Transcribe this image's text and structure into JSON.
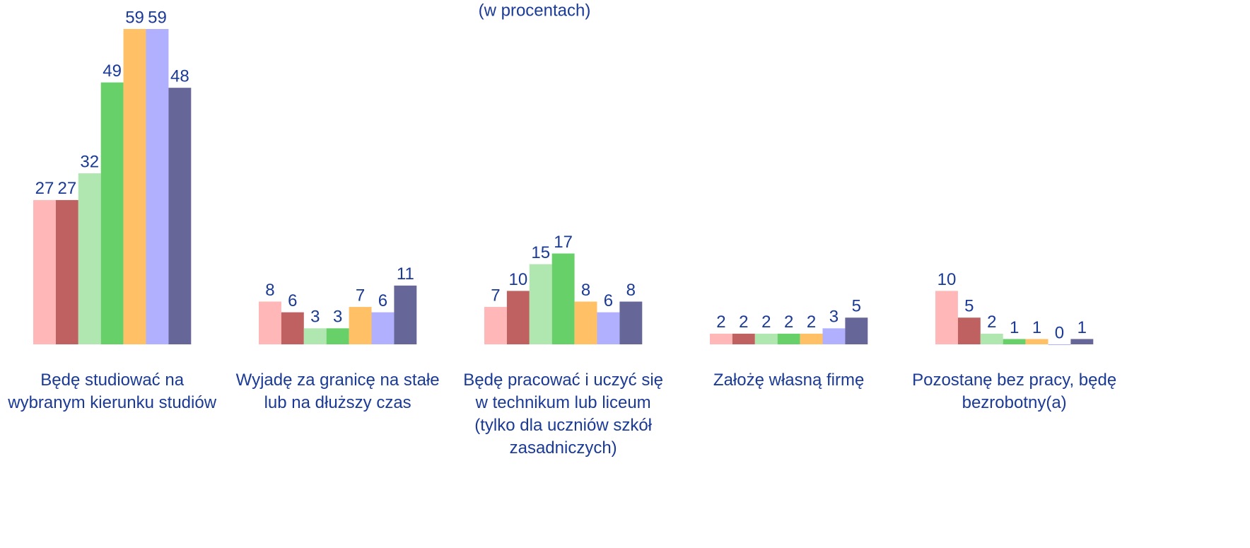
{
  "chart_data": {
    "type": "bar",
    "subtitle": "(w procentach)",
    "categories": [
      "Będę studiować na wybranym kierunku studiów",
      "Wyjadę za granicę na stałe lub na dłuższy czas",
      "Będę pracować i uczyć się w technikum lub liceum (tylko dla uczniów szkół zasadniczych)",
      "Założę własną firmę",
      "Pozostanę bez pracy, będę bezrobotny(a)"
    ],
    "series": [
      {
        "color": "#ffb7b7",
        "values": [
          27,
          8,
          7,
          2,
          10
        ]
      },
      {
        "color": "#c06161",
        "values": [
          27,
          6,
          10,
          2,
          5
        ]
      },
      {
        "color": "#b0e6b0",
        "values": [
          32,
          3,
          15,
          2,
          2
        ]
      },
      {
        "color": "#68d068",
        "values": [
          49,
          3,
          17,
          2,
          1
        ]
      },
      {
        "color": "#ffc066",
        "values": [
          59,
          7,
          8,
          2,
          1
        ]
      },
      {
        "color": "#b0b0ff",
        "values": [
          59,
          6,
          6,
          3,
          0
        ]
      },
      {
        "color": "#666699",
        "values": [
          48,
          11,
          8,
          5,
          1
        ]
      }
    ],
    "grid": false
  }
}
